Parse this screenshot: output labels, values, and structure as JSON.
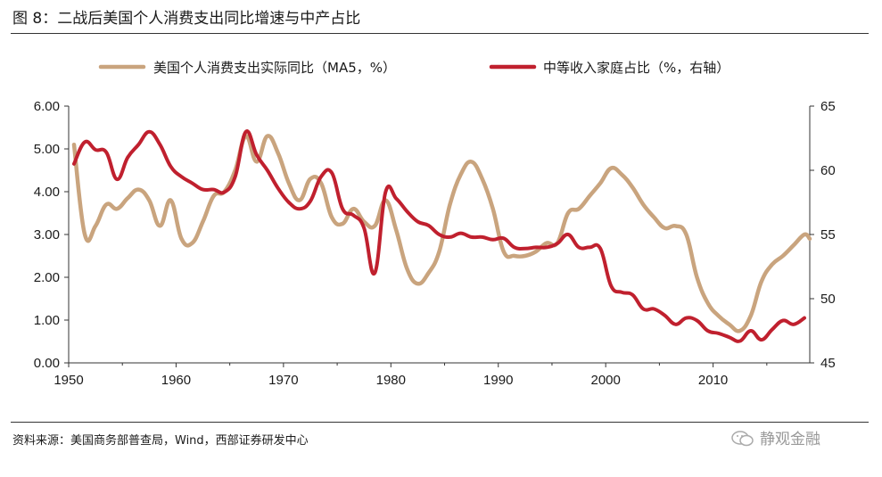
{
  "figure": {
    "title": "图 8：二战后美国个人消费支出同比增速与中产占比",
    "source": "资料来源：美国商务部普查局，Wind，西部证券研发中心",
    "watermark": "静观金融"
  },
  "chart_data": {
    "type": "line",
    "title": "图 8：二战后美国个人消费支出同比增速与中产占比",
    "xlabel": "",
    "ylabel": "",
    "xlim": [
      1950,
      2019
    ],
    "x_ticks": [
      "1950",
      "1960",
      "1970",
      "1980",
      "1990",
      "2000",
      "2010"
    ],
    "y_left": {
      "lim": [
        0,
        6
      ],
      "ticks": [
        "0.00",
        "1.00",
        "2.00",
        "3.00",
        "4.00",
        "5.00",
        "6.00"
      ]
    },
    "y_right": {
      "lim": [
        45,
        65
      ],
      "ticks": [
        "45",
        "50",
        "55",
        "60",
        "65"
      ]
    },
    "grid": false,
    "legend_position": "top",
    "series": [
      {
        "name": "美国个人消费支出实际同比（MA5，%）",
        "axis": "left",
        "color": "#C9A47E",
        "points": [
          [
            1950.5,
            5.1
          ],
          [
            1951.5,
            3.0
          ],
          [
            1952.5,
            3.2
          ],
          [
            1953.5,
            3.7
          ],
          [
            1954.5,
            3.6
          ],
          [
            1955.5,
            3.85
          ],
          [
            1956.5,
            4.05
          ],
          [
            1957.5,
            3.8
          ],
          [
            1958.5,
            3.2
          ],
          [
            1959.5,
            3.8
          ],
          [
            1960.5,
            2.9
          ],
          [
            1961.5,
            2.8
          ],
          [
            1962.5,
            3.3
          ],
          [
            1963.5,
            3.9
          ],
          [
            1964.5,
            4.0
          ],
          [
            1965.5,
            4.5
          ],
          [
            1966.5,
            5.3
          ],
          [
            1967.5,
            4.7
          ],
          [
            1968.5,
            5.3
          ],
          [
            1969.5,
            4.9
          ],
          [
            1970.5,
            4.2
          ],
          [
            1971.5,
            3.8
          ],
          [
            1972.5,
            4.3
          ],
          [
            1973.5,
            4.2
          ],
          [
            1974.5,
            3.4
          ],
          [
            1975.5,
            3.25
          ],
          [
            1976.5,
            3.6
          ],
          [
            1977.5,
            3.3
          ],
          [
            1978.5,
            3.2
          ],
          [
            1979.5,
            3.8
          ],
          [
            1980.5,
            3.1
          ],
          [
            1981.5,
            2.2
          ],
          [
            1982.5,
            1.85
          ],
          [
            1983.5,
            2.1
          ],
          [
            1984.5,
            2.6
          ],
          [
            1985.5,
            3.7
          ],
          [
            1986.5,
            4.4
          ],
          [
            1987.5,
            4.7
          ],
          [
            1988.5,
            4.3
          ],
          [
            1989.5,
            3.6
          ],
          [
            1990.5,
            2.6
          ],
          [
            1991.5,
            2.5
          ],
          [
            1992.5,
            2.5
          ],
          [
            1993.5,
            2.6
          ],
          [
            1994.5,
            2.8
          ],
          [
            1995.5,
            2.8
          ],
          [
            1996.5,
            3.5
          ],
          [
            1997.5,
            3.6
          ],
          [
            1998.5,
            3.9
          ],
          [
            1999.5,
            4.2
          ],
          [
            2000.5,
            4.55
          ],
          [
            2001.5,
            4.4
          ],
          [
            2002.5,
            4.1
          ],
          [
            2003.5,
            3.7
          ],
          [
            2004.5,
            3.4
          ],
          [
            2005.5,
            3.15
          ],
          [
            2006.5,
            3.2
          ],
          [
            2007.5,
            3.0
          ],
          [
            2008.5,
            2.0
          ],
          [
            2009.5,
            1.4
          ],
          [
            2010.5,
            1.1
          ],
          [
            2011.5,
            0.9
          ],
          [
            2012.5,
            0.75
          ],
          [
            2013.5,
            1.1
          ],
          [
            2014.5,
            1.9
          ],
          [
            2015.5,
            2.3
          ],
          [
            2016.5,
            2.5
          ],
          [
            2017.5,
            2.75
          ],
          [
            2018.5,
            3.0
          ],
          [
            2019.0,
            2.9
          ]
        ]
      },
      {
        "name": "中等收入家庭占比（%，右轴）",
        "axis": "right",
        "color": "#C0202E",
        "points": [
          [
            1950.5,
            60.5
          ],
          [
            1951.5,
            62.2
          ],
          [
            1952.5,
            61.6
          ],
          [
            1953.5,
            61.4
          ],
          [
            1954.5,
            59.3
          ],
          [
            1955.5,
            61.0
          ],
          [
            1956.5,
            62.0
          ],
          [
            1957.5,
            63.0
          ],
          [
            1958.5,
            62.0
          ],
          [
            1959.5,
            60.3
          ],
          [
            1960.5,
            59.5
          ],
          [
            1961.5,
            59.0
          ],
          [
            1962.5,
            58.5
          ],
          [
            1963.5,
            58.5
          ],
          [
            1964.5,
            58.3
          ],
          [
            1965.5,
            59.5
          ],
          [
            1966.5,
            63.0
          ],
          [
            1967.5,
            61.2
          ],
          [
            1968.5,
            60.0
          ],
          [
            1969.5,
            58.6
          ],
          [
            1970.5,
            57.5
          ],
          [
            1971.5,
            57.0
          ],
          [
            1972.5,
            57.6
          ],
          [
            1973.5,
            59.5
          ],
          [
            1974.5,
            59.8
          ],
          [
            1975.5,
            57.0
          ],
          [
            1976.5,
            56.5
          ],
          [
            1977.5,
            55.5
          ],
          [
            1978.5,
            52.0
          ],
          [
            1979.5,
            58.3
          ],
          [
            1980.5,
            57.8
          ],
          [
            1981.5,
            56.8
          ],
          [
            1982.5,
            56.0
          ],
          [
            1983.5,
            55.7
          ],
          [
            1984.5,
            55.0
          ],
          [
            1985.5,
            54.8
          ],
          [
            1986.5,
            55.1
          ],
          [
            1987.5,
            54.8
          ],
          [
            1988.5,
            54.8
          ],
          [
            1989.5,
            54.6
          ],
          [
            1990.5,
            54.7
          ],
          [
            1991.5,
            54.0
          ],
          [
            1992.5,
            53.9
          ],
          [
            1993.5,
            54.0
          ],
          [
            1994.5,
            54.0
          ],
          [
            1995.5,
            54.3
          ],
          [
            1996.5,
            55.0
          ],
          [
            1997.5,
            54.0
          ],
          [
            1998.5,
            54.0
          ],
          [
            1999.5,
            53.9
          ],
          [
            2000.5,
            51.0
          ],
          [
            2001.5,
            50.5
          ],
          [
            2002.5,
            50.3
          ],
          [
            2003.5,
            49.2
          ],
          [
            2004.5,
            49.2
          ],
          [
            2005.5,
            48.7
          ],
          [
            2006.5,
            48.0
          ],
          [
            2007.5,
            48.5
          ],
          [
            2008.5,
            48.3
          ],
          [
            2009.5,
            47.5
          ],
          [
            2010.5,
            47.3
          ],
          [
            2011.5,
            47.0
          ],
          [
            2012.5,
            46.7
          ],
          [
            2013.5,
            47.5
          ],
          [
            2014.5,
            46.8
          ],
          [
            2015.5,
            47.6
          ],
          [
            2016.5,
            48.3
          ],
          [
            2017.5,
            48.0
          ],
          [
            2018.5,
            48.5
          ]
        ]
      }
    ]
  }
}
